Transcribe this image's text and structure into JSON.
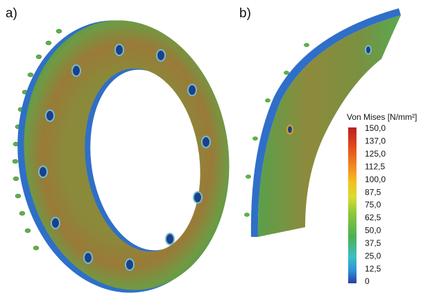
{
  "figure": {
    "label_a": "a)",
    "label_b": "b)",
    "colorbar": {
      "title": "Von Mises [N/mm²]",
      "ticks": [
        "150,0",
        "137,0",
        "125,0",
        "112,5",
        "100,0",
        "87,5",
        "75,0",
        "62,5",
        "50,0",
        "37,5",
        "25,0",
        "12,5",
        "0"
      ]
    }
  }
}
